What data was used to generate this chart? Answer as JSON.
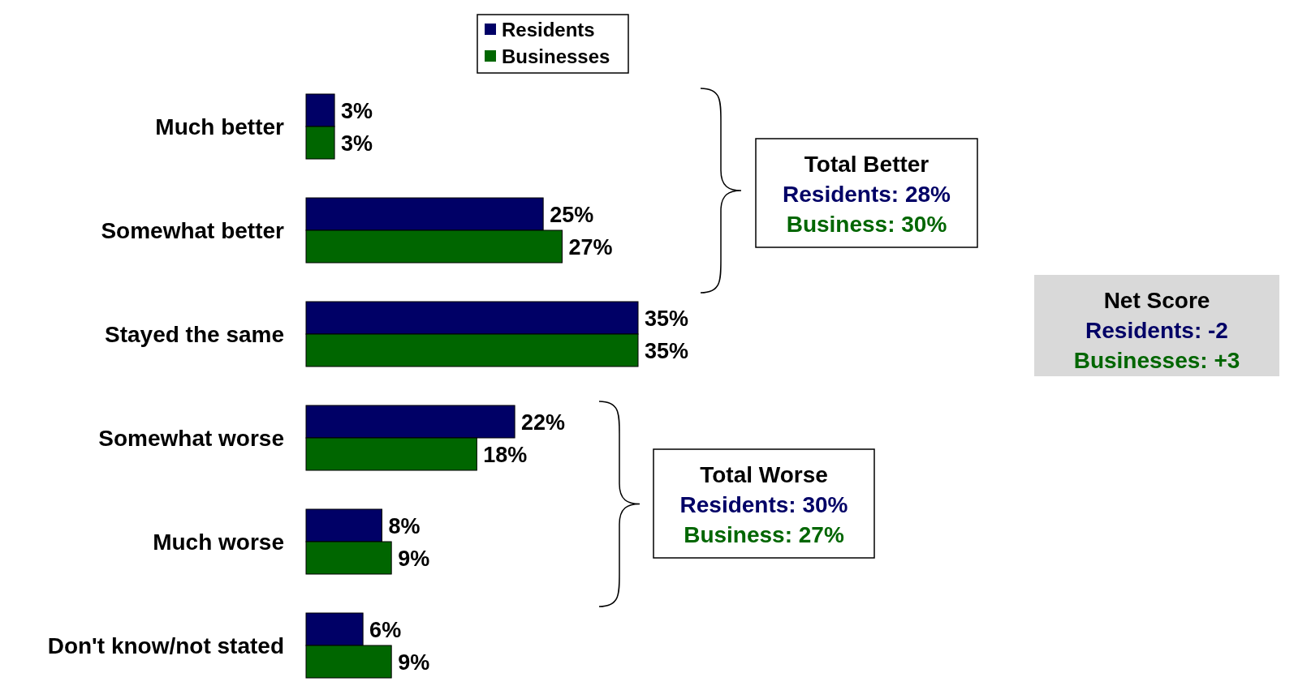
{
  "chart_data": {
    "type": "bar",
    "orientation": "horizontal",
    "categories": [
      "Much better",
      "Somewhat better",
      "Stayed the same",
      "Somewhat worse",
      "Much worse",
      "Don't know/not stated"
    ],
    "series": [
      {
        "name": "Residents",
        "color": "#000066",
        "values": [
          3,
          25,
          35,
          22,
          8,
          6
        ],
        "value_labels": [
          "3%",
          "25%",
          "35%",
          "22%",
          "8%",
          "6%"
        ]
      },
      {
        "name": "Businesses",
        "color": "#006600",
        "values": [
          3,
          27,
          35,
          18,
          9,
          9
        ],
        "value_labels": [
          "3%",
          "27%",
          "35%",
          "18%",
          "9%",
          "9%"
        ]
      }
    ],
    "legend": "top",
    "tick_labels": "y",
    "annotations": [
      "Total Better",
      "Residents: 28%",
      "Business: 30%",
      "Total Worse",
      "Residents: 30%",
      "Business: 27%",
      "Net Score",
      "Residents: -2",
      "Businesses: +3"
    ]
  }
}
